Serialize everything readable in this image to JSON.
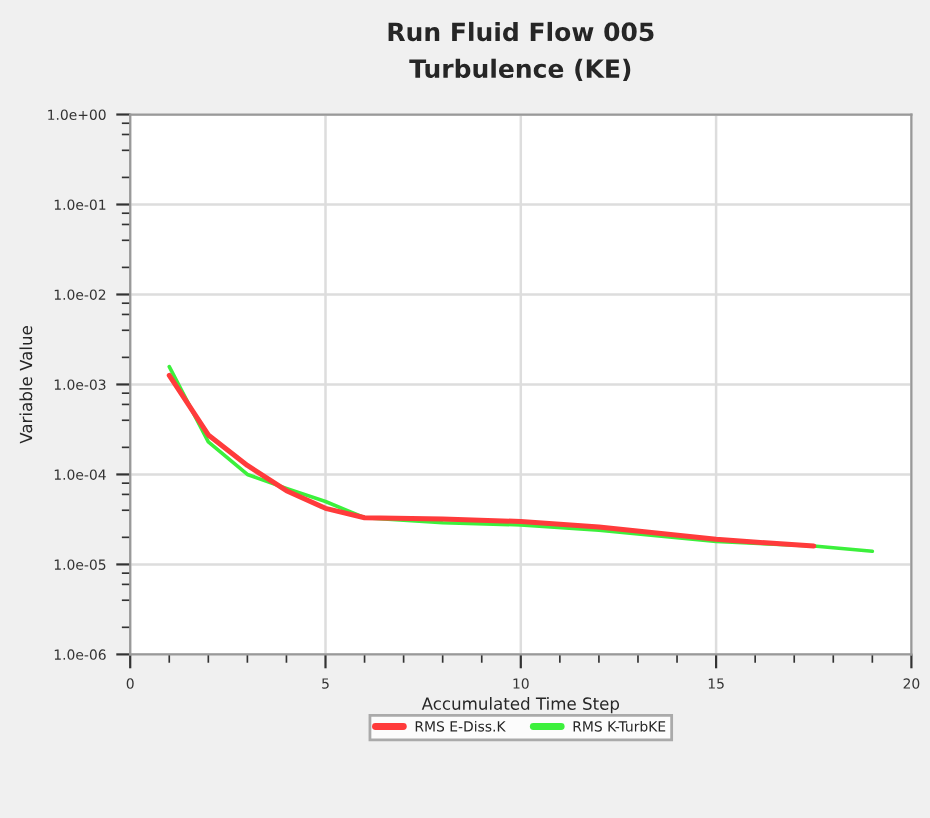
{
  "chart_data": {
    "type": "line",
    "title": "Run Fluid Flow 005",
    "subtitle": "Turbulence (KE)",
    "xlabel": "Accumulated Time Step",
    "ylabel": "Variable Value",
    "log": "y",
    "grid": true,
    "legend": "bottom",
    "marker": "none",
    "line_style": "solid",
    "xlim": [
      0,
      20
    ],
    "xticks": [
      0,
      5,
      10,
      15,
      20
    ],
    "ylim": [
      1e-06,
      1
    ],
    "yticks": [
      {
        "value": 1e-06,
        "label": "1.0e-06"
      },
      {
        "value": 1e-05,
        "label": "1.0e-05"
      },
      {
        "value": 0.0001,
        "label": "1.0e-04"
      },
      {
        "value": 0.001,
        "label": "1.0e-03"
      },
      {
        "value": 0.01,
        "label": "1.0e-02"
      },
      {
        "value": 0.1,
        "label": "1.0e-01"
      },
      {
        "value": 1,
        "label": "1.0e+00"
      }
    ],
    "series": [
      {
        "name": "RMS E-Diss.K",
        "color": "#ff3b3b",
        "x": [
          1,
          2,
          3,
          4,
          5,
          6,
          8,
          10,
          12,
          15,
          17.5
        ],
        "values": [
          0.00126,
          0.000275,
          0.000126,
          6.6e-05,
          4.2e-05,
          3.3e-05,
          3.2e-05,
          3e-05,
          2.6e-05,
          1.9e-05,
          1.6e-05
        ]
      },
      {
        "name": "RMS K-TurbKE",
        "color": "#3cf03c",
        "x": [
          1,
          2,
          3,
          4,
          5,
          6,
          8,
          10,
          12,
          15,
          17.5,
          19
        ],
        "values": [
          0.00158,
          0.00023,
          0.0001,
          7e-05,
          5e-05,
          3.3e-05,
          2.9e-05,
          2.75e-05,
          2.4e-05,
          1.8e-05,
          1.6e-05,
          1.4e-05
        ]
      }
    ]
  }
}
